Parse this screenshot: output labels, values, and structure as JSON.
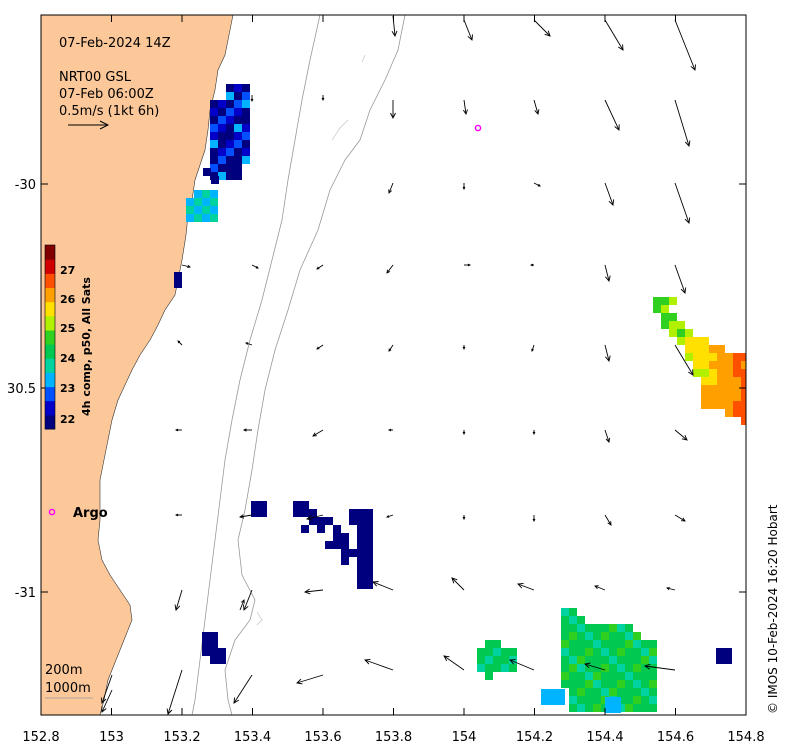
{
  "header": {
    "date_label": "07-Feb-2024 14Z",
    "product": "NRT00 GSL",
    "product_time": "07-Feb 06:00Z",
    "scale_label": "0.5m/s (1kt 6h)"
  },
  "colorbar": {
    "label": "4h comp, p50, All Sats",
    "ticks": [
      "22",
      "23",
      "24",
      "25",
      "26",
      "27"
    ],
    "colors": [
      "#00007f",
      "#0000c8",
      "#0050ff",
      "#00b4ff",
      "#00d2a0",
      "#00c850",
      "#30d020",
      "#b0f000",
      "#ffe000",
      "#ffa000",
      "#ff5000",
      "#d00000",
      "#800000"
    ]
  },
  "axes": {
    "x_ticks": [
      "152.8",
      "153",
      "153.2",
      "153.4",
      "153.6",
      "153.8",
      "154",
      "154.2",
      "154.4",
      "154.6",
      "154.8"
    ],
    "y_ticks": [
      "-30",
      "30.5",
      "-31"
    ]
  },
  "markers": {
    "argo_label": "Argo",
    "marker_color": "#ff00ff"
  },
  "isobaths": {
    "label_200": "200m",
    "label_1000": "1000m"
  },
  "credit": "© IMOS 10-Feb-2024 16:20 Hobart",
  "colors": {
    "land": "#fcc89a",
    "isobath": "#999999",
    "frame": "#000000"
  }
}
